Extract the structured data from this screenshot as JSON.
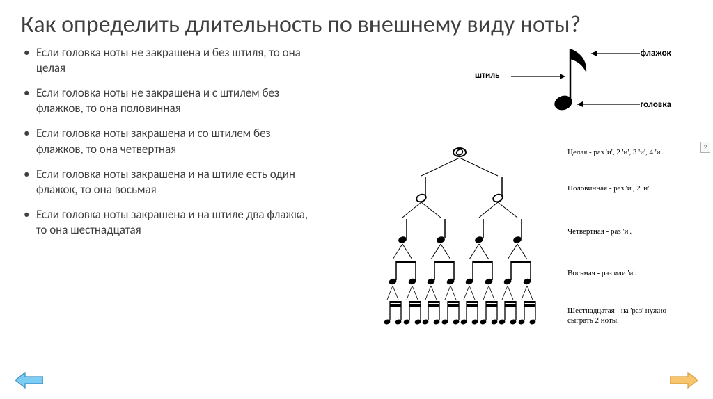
{
  "title": "Как определить длительность по внешнему виду ноты?",
  "bullets": [
    "Если головка ноты не закрашена и без штиля, то она целая",
    "Если головка ноты не закрашена и с штилем без флажков, то она половинная",
    "Если головка ноты закрашена и со штилем без флажков, то она четвертная",
    "Если головка ноты закрашена и на штиле есть один флажок, то она восьмая",
    "Если головка ноты закрашена и на штиле два флажка, то она шестнадцатая"
  ],
  "anatomy": {
    "labels": {
      "stem": "штиль",
      "flag": "флажок",
      "head": "головка"
    },
    "color": "#000000"
  },
  "tree": {
    "rows": [
      {
        "label": "Целая - раз 'и', 2 'и', 3 'и', 4 'и'."
      },
      {
        "label": "Половинная - раз 'и', 2 'и'."
      },
      {
        "label": "Четвертная - раз 'и'."
      },
      {
        "label": "Восьмая - раз или 'и'."
      },
      {
        "label": "Шестнадцатая - на 'раз' нужно сыграть 2 ноты."
      }
    ],
    "color": "#000000"
  },
  "nav": {
    "prev_color": "#7dcdf3",
    "prev_stroke": "#3b8cc4",
    "next_color": "#f8c56e",
    "next_stroke": "#d6a040"
  },
  "page_ctrl": "2"
}
